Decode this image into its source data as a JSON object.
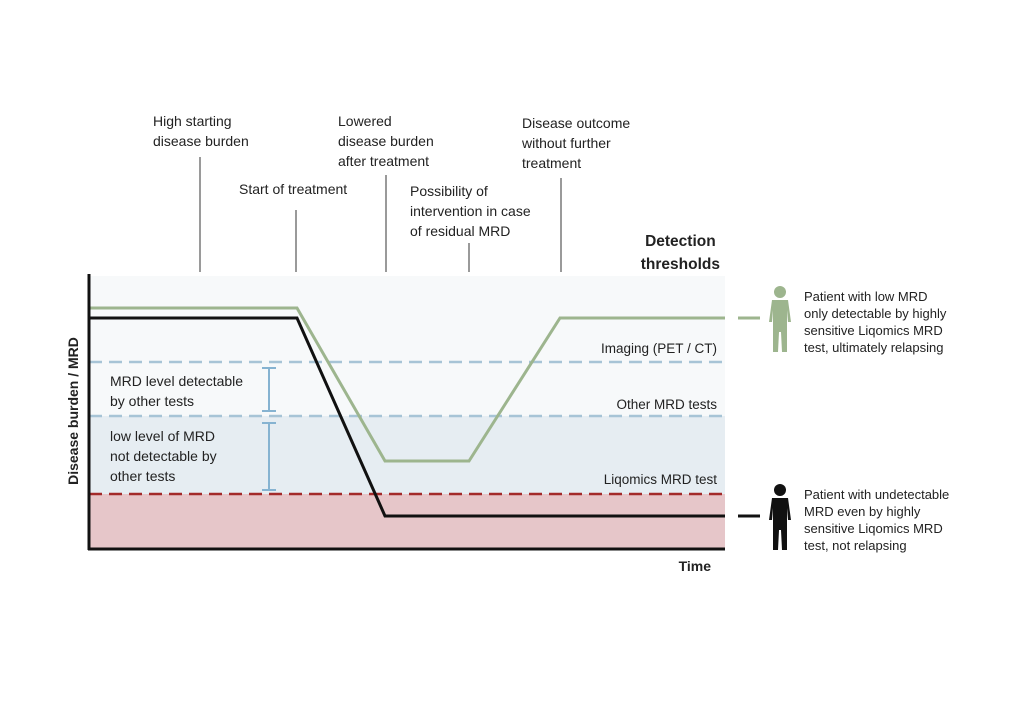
{
  "annotations": {
    "high_start": [
      "High starting",
      "disease burden"
    ],
    "start_treatment": [
      "Start of treatment"
    ],
    "lowered": [
      "Lowered",
      "disease burden",
      "after treatment"
    ],
    "possibility": [
      "Possibility of",
      "intervention in case",
      "of residual MRD"
    ],
    "outcome": [
      "Disease outcome",
      "without further",
      "treatment"
    ]
  },
  "detection_title": [
    "Detection",
    "thresholds"
  ],
  "thresholds": {
    "imaging": "Imaging (PET / CT)",
    "other": "Other MRD tests",
    "liqomics": "Liqomics MRD test"
  },
  "ranges": {
    "detectable": [
      "MRD level detectable",
      "by other tests"
    ],
    "low": [
      "low level of MRD",
      "not detectable by",
      "other tests"
    ]
  },
  "axes": {
    "y_label": "Disease burden / MRD",
    "x_label": "Time"
  },
  "patients": {
    "relapsing": {
      "text": [
        "Patient with low MRD",
        "only detectable by highly",
        "sensitive Liqomics MRD",
        "test, ultimately relapsing"
      ],
      "color": "#9db58e"
    },
    "not_relapsing": {
      "text": [
        "Patient with undetectable",
        "MRD even by highly",
        "sensitive Liqomics MRD",
        "test, not relapsing"
      ],
      "color": "#111111"
    }
  },
  "colors": {
    "threshold_blue": "#a7c4d6",
    "threshold_red": "#a32a2a",
    "band_blue": "#e6edf2",
    "band_red": "#e6c6c9",
    "range_bar": "#86b3d1"
  }
}
